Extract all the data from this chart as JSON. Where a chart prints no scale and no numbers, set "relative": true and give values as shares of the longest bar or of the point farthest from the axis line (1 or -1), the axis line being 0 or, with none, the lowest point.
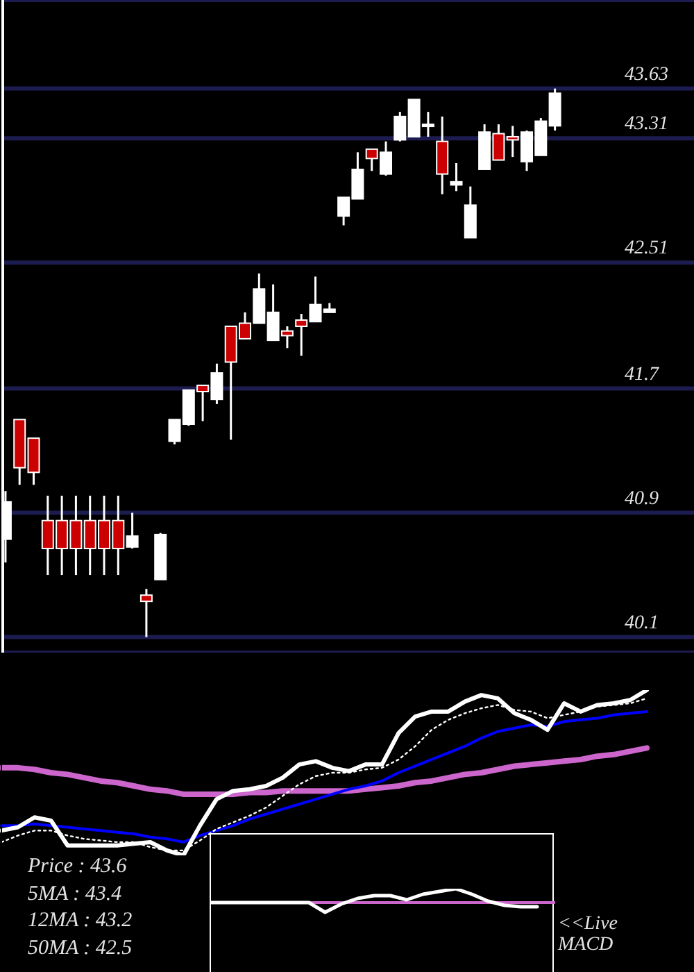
{
  "chart_data": [
    {
      "type": "candlestick",
      "categories": [
        null,
        null,
        null,
        null,
        null,
        null,
        null,
        null,
        null,
        null,
        null,
        null,
        null,
        null,
        null,
        null,
        null,
        null,
        null,
        null,
        null,
        null,
        null,
        null,
        null,
        null,
        null,
        null,
        null,
        null,
        null,
        null,
        null,
        null,
        null,
        null,
        null,
        null,
        null,
        null
      ],
      "ohlc": [
        [
          40.73,
          41.04,
          40.58,
          40.97
        ],
        [
          41.5,
          41.5,
          41.08,
          41.19
        ],
        [
          41.38,
          41.38,
          41.08,
          41.16
        ],
        [
          40.85,
          41.01,
          40.5,
          40.67
        ],
        [
          40.85,
          41.01,
          40.5,
          40.67
        ],
        [
          40.85,
          41.01,
          40.5,
          40.67
        ],
        [
          40.85,
          41.01,
          40.5,
          40.67
        ],
        [
          40.85,
          41.01,
          40.5,
          40.67
        ],
        [
          40.85,
          41.01,
          40.5,
          40.67
        ],
        [
          40.68,
          40.9,
          40.67,
          40.75
        ],
        [
          40.37,
          40.41,
          40.1,
          40.33
        ],
        [
          40.47,
          40.77,
          40.47,
          40.76
        ],
        [
          41.36,
          41.5,
          41.34,
          41.5
        ],
        [
          41.47,
          41.69,
          41.46,
          41.69
        ],
        [
          41.72,
          41.72,
          41.49,
          41.68
        ],
        [
          41.63,
          41.86,
          41.6,
          41.8
        ],
        [
          42.1,
          42.1,
          41.37,
          41.87
        ],
        [
          42.12,
          42.19,
          42.02,
          42.02
        ],
        [
          42.12,
          42.44,
          42.12,
          42.34
        ],
        [
          42.01,
          42.37,
          42.01,
          42.19
        ],
        [
          42.07,
          42.1,
          41.96,
          42.04
        ],
        [
          42.14,
          42.18,
          41.91,
          42.1
        ],
        [
          42.13,
          42.42,
          42.13,
          42.24
        ],
        [
          42.19,
          42.25,
          42.19,
          42.21
        ],
        [
          42.81,
          42.93,
          42.75,
          42.93
        ],
        [
          42.92,
          43.22,
          42.92,
          43.11
        ],
        [
          43.24,
          43.24,
          43.1,
          43.18
        ],
        [
          43.08,
          43.29,
          43.07,
          43.22
        ],
        [
          43.3,
          43.48,
          43.29,
          43.45
        ],
        [
          43.32,
          43.56,
          43.32,
          43.56
        ],
        [
          43.39,
          43.48,
          43.32,
          43.4
        ],
        [
          43.29,
          43.45,
          42.95,
          43.08
        ],
        [
          43.01,
          43.15,
          42.97,
          43.03
        ],
        [
          42.67,
          43.0,
          42.67,
          42.88
        ],
        [
          43.11,
          43.4,
          43.11,
          43.35
        ],
        [
          43.34,
          43.4,
          43.17,
          43.17
        ],
        [
          43.32,
          43.39,
          43.19,
          43.3
        ],
        [
          43.16,
          43.36,
          43.1,
          43.35
        ],
        [
          43.2,
          43.44,
          43.2,
          43.42
        ],
        [
          43.39,
          43.63,
          43.36,
          43.6
        ]
      ],
      "colors": [
        "#ffffff",
        "#cc0000",
        "#cc0000",
        "#cc0000",
        "#cc0000",
        "#cc0000",
        "#cc0000",
        "#cc0000",
        "#cc0000",
        "#ffffff",
        "#cc0000",
        "#ffffff",
        "#ffffff",
        "#ffffff",
        "#cc0000",
        "#ffffff",
        "#cc0000",
        "#cc0000",
        "#ffffff",
        "#ffffff",
        "#cc0000",
        "#cc0000",
        "#ffffff",
        "#ffffff",
        "#ffffff",
        "#ffffff",
        "#cc0000",
        "#ffffff",
        "#ffffff",
        "#ffffff",
        "#ffffff",
        "#cc0000",
        "#ffffff",
        "#ffffff",
        "#ffffff",
        "#cc0000",
        "#cc0000",
        "#ffffff",
        "#ffffff",
        "#ffffff"
      ],
      "ylim": [
        40.0,
        44.2
      ],
      "yticks": [
        40.1,
        40.9,
        41.7,
        42.51,
        43.31,
        43.63
      ],
      "grid": "y",
      "tick_labels": "y"
    },
    {
      "type": "line",
      "categories": [
        null,
        null,
        null,
        null,
        null,
        null,
        null,
        null,
        null,
        null,
        null,
        null,
        null,
        null,
        null,
        null,
        null,
        null,
        null,
        null,
        null,
        null,
        null,
        null,
        null,
        null,
        null,
        null,
        null,
        null,
        null,
        null,
        null,
        null,
        null,
        null,
        null,
        null,
        null,
        null
      ],
      "relative": true,
      "tick_labels": false,
      "series": [
        {
          "color": "#ffffff",
          "line_style": "solid",
          "values": [
            0.15,
            0.17,
            0.23,
            0.21,
            0.06,
            0.06,
            0.06,
            0.06,
            0.07,
            0.08,
            0.03,
            0,
            0.18,
            0.34,
            0.39,
            0.4,
            0.42,
            0.47,
            0.55,
            0.57,
            0.53,
            0.51,
            0.55,
            0.55,
            0.74,
            0.84,
            0.87,
            0.87,
            0.93,
            0.97,
            0.95,
            0.86,
            0.82,
            0.76,
            0.92,
            0.87,
            0.91,
            0.92,
            0.94,
            1
          ]
        },
        {
          "color": "#ffffff",
          "line_style": "dotted",
          "values": [
            0.08,
            0.12,
            0.15,
            0.15,
            0.12,
            0.1,
            0.09,
            0.08,
            0.08,
            0.05,
            0.03,
            0.03,
            0.09,
            0.16,
            0.2,
            0.24,
            0.29,
            0.36,
            0.43,
            0.48,
            0.5,
            0.5,
            0.52,
            0.53,
            0.58,
            0.66,
            0.76,
            0.82,
            0.86,
            0.89,
            0.91,
            0.88,
            0.87,
            0.83,
            0.85,
            0.87,
            0.9,
            0.91,
            0.92,
            0.95
          ]
        },
        {
          "color": "#0000ff",
          "line_style": "solid",
          "values": [
            0.18,
            0.18,
            0.19,
            0.18,
            0.17,
            0.16,
            0.15,
            0.14,
            0.13,
            0.11,
            0.1,
            0.08,
            0.12,
            0.15,
            0.18,
            0.22,
            0.25,
            0.28,
            0.31,
            0.34,
            0.37,
            0.4,
            0.42,
            0.45,
            0.5,
            0.54,
            0.58,
            0.62,
            0.66,
            0.71,
            0.75,
            0.77,
            0.79,
            0.78,
            0.81,
            0.82,
            0.83,
            0.85,
            0.86,
            0.87
          ]
        },
        {
          "color": "#cc66cc",
          "line_style": "solid",
          "values": [
            0.53,
            0.53,
            0.52,
            0.5,
            0.49,
            0.47,
            0.45,
            0.44,
            0.42,
            0.4,
            0.39,
            0.37,
            0.37,
            0.37,
            0.37,
            0.38,
            0.38,
            0.39,
            0.39,
            0.39,
            0.39,
            0.39,
            0.4,
            0.41,
            0.42,
            0.44,
            0.45,
            0.47,
            0.49,
            0.5,
            0.52,
            0.54,
            0.55,
            0.56,
            0.57,
            0.58,
            0.6,
            0.61,
            0.63,
            0.65
          ]
        }
      ],
      "annotations": [
        "Price : 43.6",
        "5MA : 43.4",
        "12MA : 43.2",
        "50MA : 42.5"
      ]
    },
    {
      "type": "line",
      "categories": [
        null,
        null,
        null,
        null,
        null,
        null,
        null,
        null,
        null,
        null,
        null,
        null,
        null,
        null,
        null,
        null,
        null,
        null,
        null,
        null,
        null
      ],
      "relative": true,
      "tick_labels": false,
      "series": [
        {
          "color": "#ffffff",
          "values": [
            0,
            0,
            0,
            0,
            0,
            0,
            0,
            -0.7,
            -0.1,
            0.3,
            0.5,
            0.5,
            0.2,
            0.6,
            0.8,
            1,
            0.6,
            0.1,
            -0.2,
            -0.3,
            -0.3
          ]
        }
      ],
      "ref_lines": [
        {
          "axis": "y",
          "value": 0,
          "color": "#cc66cc"
        }
      ],
      "annotations": [
        "<<Live MACD"
      ]
    }
  ]
}
